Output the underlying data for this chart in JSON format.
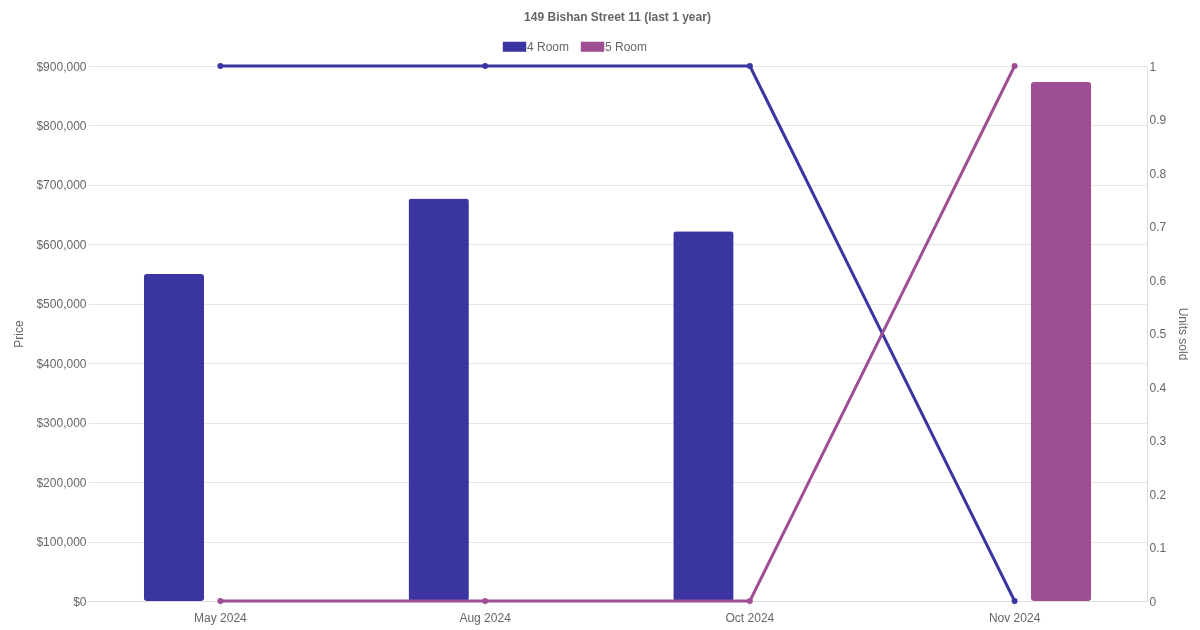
{
  "chart_data": {
    "type": "bar",
    "title": "149 Bishan Street 11 (last 1 year)",
    "ylabel": "Price",
    "y2label": "Units sold",
    "categories": [
      "May 2024",
      "Aug 2024",
      "Oct 2024",
      "Nov 2024"
    ],
    "series": [
      {
        "name": "4 Room",
        "color": "#3a35a0",
        "values": [
          550000,
          677000,
          622000,
          null
        ]
      },
      {
        "name": "5 Room",
        "color": "#9e4f93",
        "values": [
          null,
          null,
          null,
          873000
        ]
      },
      {
        "color": "#3a35a0",
        "type": "line",
        "axis": "y2",
        "values": [
          1,
          1,
          1,
          0
        ]
      },
      {
        "color": "#9e4f93",
        "type": "line",
        "axis": "y2",
        "values": [
          0,
          0,
          0,
          1
        ]
      }
    ],
    "ylim": [
      0,
      900000
    ],
    "yticks": [
      {
        "value": 0,
        "label": "$0"
      },
      {
        "value": 100000,
        "label": "$100,000"
      },
      {
        "value": 200000,
        "label": "$200,000"
      },
      {
        "value": 300000,
        "label": "$300,000"
      },
      {
        "value": 400000,
        "label": "$400,000"
      },
      {
        "value": 500000,
        "label": "$500,000"
      },
      {
        "value": 600000,
        "label": "$600,000"
      },
      {
        "value": 700000,
        "label": "$700,000"
      },
      {
        "value": 800000,
        "label": "$800,000"
      },
      {
        "value": 900000,
        "label": "$900,000"
      }
    ],
    "y2lim": [
      0,
      1
    ],
    "y2ticks": [
      0,
      0.1,
      0.2,
      0.3,
      0.4,
      0.5,
      0.6,
      0.7,
      0.8,
      0.9,
      1
    ],
    "grid": "y",
    "legend": "top",
    "marker": "circle",
    "line_style": "solid"
  }
}
